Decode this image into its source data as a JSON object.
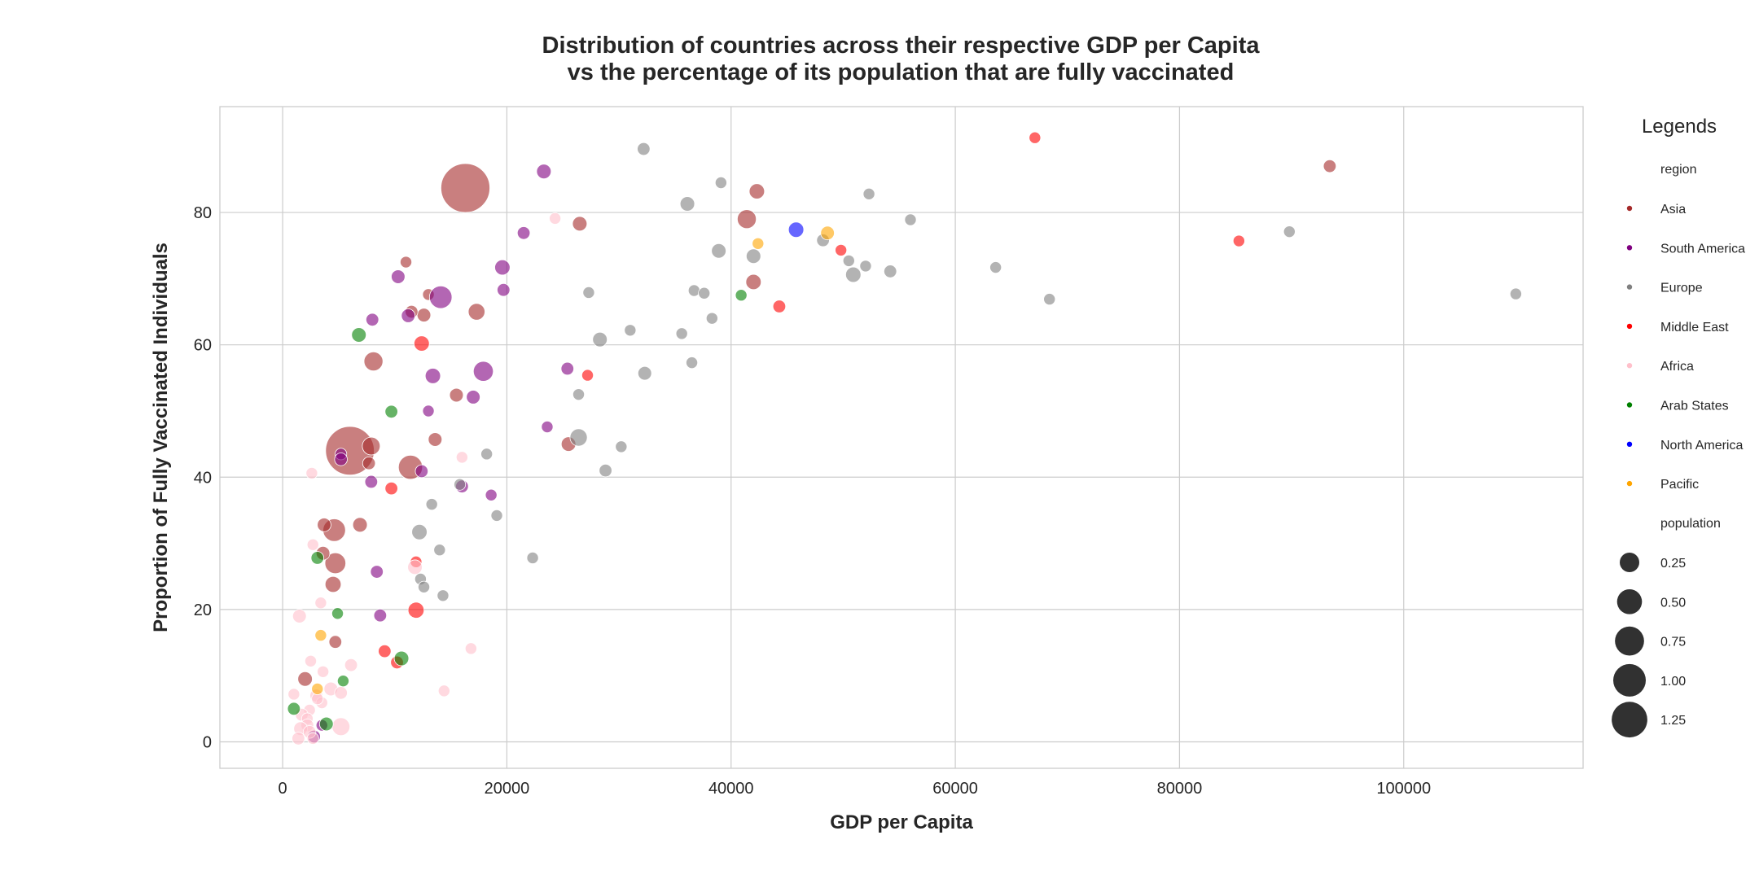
{
  "chart_data": {
    "type": "scatter",
    "title_line1": "Distribution of countries across their respective GDP per Capita",
    "title_line2": "vs the percentage of its population that are fully vaccinated",
    "xlabel": "GDP per Capita",
    "ylabel": "Proportion of Fully Vaccinated Individuals",
    "xlim": [
      -5600,
      116000
    ],
    "ylim": [
      -4,
      96
    ],
    "xticks": [
      0,
      20000,
      40000,
      60000,
      80000,
      100000
    ],
    "yticks": [
      0,
      20,
      40,
      60,
      80
    ],
    "grid": true,
    "legend": {
      "placement": "right, outside plot",
      "title": "Legends",
      "hue_title": "region",
      "size_title": "population",
      "size_values": [
        0.25,
        0.5,
        0.75,
        1.0,
        1.25
      ],
      "size_labels": [
        "0.25",
        "0.50",
        "0.75",
        "1.00",
        "1.25"
      ]
    },
    "regions": [
      {
        "name": "Asia",
        "color": "#a52a2a"
      },
      {
        "name": "South America",
        "color": "#800080"
      },
      {
        "name": "Europe",
        "color": "#808080"
      },
      {
        "name": "Middle East",
        "color": "#ff0000"
      },
      {
        "name": "Africa",
        "color": "#ffc0cb"
      },
      {
        "name": "Arab States",
        "color": "#008000"
      },
      {
        "name": "North America",
        "color": "#0000ff"
      },
      {
        "name": "Pacific",
        "color": "#ffa500"
      }
    ],
    "series": [
      {
        "region": "Asia",
        "points": [
          [
            16300,
            83.7,
            1.4
          ],
          [
            6000,
            44.0,
            1.38
          ],
          [
            11400,
            41.5,
            0.24
          ],
          [
            4600,
            32.0,
            0.2
          ],
          [
            4700,
            27.0,
            0.16
          ],
          [
            8100,
            57.5,
            0.12
          ],
          [
            7900,
            44.7,
            0.1
          ],
          [
            41400,
            79.0,
            0.12
          ],
          [
            42000,
            69.5,
            0.06
          ],
          [
            17300,
            65.0,
            0.08
          ],
          [
            42300,
            83.2,
            0.06
          ],
          [
            26500,
            78.3,
            0.05
          ],
          [
            4500,
            23.8,
            0.07
          ],
          [
            6900,
            32.8,
            0.05
          ],
          [
            3700,
            32.8,
            0.04
          ],
          [
            3600,
            28.5,
            0.04
          ],
          [
            12600,
            64.5,
            0.04
          ],
          [
            25500,
            45.0,
            0.05
          ],
          [
            13600,
            45.7,
            0.04
          ],
          [
            15500,
            52.4,
            0.04
          ],
          [
            7700,
            42.1,
            0.03
          ],
          [
            93400,
            87.0,
            0.03
          ],
          [
            13000,
            67.6,
            0.02
          ],
          [
            11000,
            72.5,
            0.02
          ],
          [
            4700,
            15.1,
            0.03
          ],
          [
            11500,
            65.0,
            0.03
          ],
          [
            2000,
            9.5,
            0.05
          ]
        ]
      },
      {
        "region": "South America",
        "points": [
          [
            14100,
            67.2,
            0.2
          ],
          [
            17900,
            56.0,
            0.14
          ],
          [
            19600,
            71.7,
            0.06
          ],
          [
            13400,
            55.3,
            0.06
          ],
          [
            23300,
            86.2,
            0.05
          ],
          [
            10300,
            70.3,
            0.04
          ],
          [
            11200,
            64.4,
            0.04
          ],
          [
            8000,
            63.8,
            0.03
          ],
          [
            21500,
            76.9,
            0.03
          ],
          [
            19700,
            68.3,
            0.03
          ],
          [
            17000,
            52.1,
            0.04
          ],
          [
            25400,
            56.4,
            0.03
          ],
          [
            13000,
            50.0,
            0.02
          ],
          [
            7900,
            39.3,
            0.03
          ],
          [
            12400,
            40.9,
            0.03
          ],
          [
            16000,
            38.6,
            0.03
          ],
          [
            18600,
            37.3,
            0.02
          ],
          [
            23600,
            47.6,
            0.02
          ],
          [
            8400,
            25.7,
            0.03
          ],
          [
            8700,
            19.1,
            0.03
          ],
          [
            5200,
            43.5,
            0.02
          ],
          [
            5200,
            42.7,
            0.03
          ],
          [
            3500,
            2.5,
            0.02
          ],
          [
            2800,
            0.8,
            0.03
          ]
        ]
      },
      {
        "region": "Europe",
        "points": [
          [
            32200,
            89.6,
            0.03
          ],
          [
            39100,
            84.5,
            0.02
          ],
          [
            36100,
            81.3,
            0.05
          ],
          [
            52300,
            82.8,
            0.02
          ],
          [
            56000,
            78.9,
            0.02
          ],
          [
            48200,
            75.8,
            0.03
          ],
          [
            50500,
            72.7,
            0.02
          ],
          [
            52000,
            71.9,
            0.02
          ],
          [
            54200,
            71.1,
            0.03
          ],
          [
            50900,
            70.6,
            0.06
          ],
          [
            42000,
            73.4,
            0.05
          ],
          [
            38900,
            74.2,
            0.05
          ],
          [
            63600,
            71.7,
            0.02
          ],
          [
            68400,
            66.9,
            0.02
          ],
          [
            89800,
            77.1,
            0.02
          ],
          [
            110000,
            67.7,
            0.02
          ],
          [
            36700,
            68.2,
            0.02
          ],
          [
            37600,
            67.8,
            0.02
          ],
          [
            27300,
            67.9,
            0.02
          ],
          [
            38300,
            64.0,
            0.02
          ],
          [
            28300,
            60.8,
            0.05
          ],
          [
            31000,
            62.2,
            0.02
          ],
          [
            35600,
            61.7,
            0.02
          ],
          [
            32300,
            55.7,
            0.04
          ],
          [
            36500,
            57.3,
            0.02
          ],
          [
            26400,
            52.5,
            0.02
          ],
          [
            26400,
            46.0,
            0.09
          ],
          [
            30200,
            44.6,
            0.02
          ],
          [
            28800,
            41.0,
            0.03
          ],
          [
            18200,
            43.5,
            0.02
          ],
          [
            15800,
            38.9,
            0.02
          ],
          [
            19100,
            34.2,
            0.02
          ],
          [
            13300,
            35.9,
            0.02
          ],
          [
            12200,
            31.7,
            0.06
          ],
          [
            14000,
            29.0,
            0.02
          ],
          [
            12300,
            24.6,
            0.02
          ],
          [
            12600,
            23.4,
            0.02
          ],
          [
            14300,
            22.1,
            0.02
          ],
          [
            22300,
            27.8,
            0.02
          ]
        ]
      },
      {
        "region": "Middle East",
        "points": [
          [
            67100,
            91.3,
            0.02
          ],
          [
            85300,
            75.7,
            0.02
          ],
          [
            44300,
            65.8,
            0.03
          ],
          [
            49800,
            74.3,
            0.02
          ],
          [
            12400,
            60.2,
            0.06
          ],
          [
            27200,
            55.4,
            0.02
          ],
          [
            9700,
            38.3,
            0.03
          ],
          [
            11900,
            27.2,
            0.02
          ],
          [
            11900,
            19.9,
            0.07
          ],
          [
            9100,
            13.7,
            0.03
          ],
          [
            10200,
            12.0,
            0.03
          ]
        ]
      },
      {
        "region": "Africa",
        "points": [
          [
            2600,
            40.6,
            0.02
          ],
          [
            16000,
            43.0,
            0.02
          ],
          [
            24300,
            79.1,
            0.02
          ],
          [
            2700,
            29.8,
            0.02
          ],
          [
            11800,
            26.4,
            0.05
          ],
          [
            3400,
            21.0,
            0.02
          ],
          [
            1500,
            19.0,
            0.04
          ],
          [
            6100,
            11.6,
            0.03
          ],
          [
            16800,
            14.1,
            0.02
          ],
          [
            14400,
            7.7,
            0.02
          ],
          [
            5200,
            2.3,
            0.1
          ],
          [
            4300,
            8.0,
            0.04
          ],
          [
            5200,
            7.4,
            0.03
          ],
          [
            3000,
            7.0,
            0.03
          ],
          [
            3500,
            5.9,
            0.02
          ],
          [
            3100,
            6.5,
            0.02
          ],
          [
            2400,
            4.8,
            0.02
          ],
          [
            1700,
            4.1,
            0.03
          ],
          [
            2200,
            3.5,
            0.02
          ],
          [
            1000,
            7.2,
            0.02
          ],
          [
            2200,
            2.5,
            0.03
          ],
          [
            1600,
            2.0,
            0.04
          ],
          [
            2400,
            1.5,
            0.03
          ],
          [
            1400,
            0.5,
            0.03
          ],
          [
            2700,
            0.5,
            0.02
          ],
          [
            3600,
            10.6,
            0.02
          ],
          [
            2500,
            12.2,
            0.02
          ]
        ]
      },
      {
        "region": "Arab States",
        "points": [
          [
            6800,
            61.5,
            0.05
          ],
          [
            9700,
            49.9,
            0.03
          ],
          [
            40900,
            67.5,
            0.02
          ],
          [
            3100,
            27.8,
            0.03
          ],
          [
            4900,
            19.4,
            0.02
          ],
          [
            10600,
            12.6,
            0.05
          ],
          [
            5400,
            9.2,
            0.02
          ],
          [
            1000,
            5.0,
            0.03
          ],
          [
            3900,
            2.7,
            0.04
          ]
        ]
      },
      {
        "region": "North America",
        "points": [
          [
            45800,
            77.4,
            0.06
          ]
        ]
      },
      {
        "region": "Pacific",
        "points": [
          [
            48600,
            76.9,
            0.04
          ],
          [
            42400,
            75.3,
            0.02
          ],
          [
            3400,
            16.1,
            0.02
          ],
          [
            3100,
            8.0,
            0.02
          ]
        ]
      }
    ]
  }
}
